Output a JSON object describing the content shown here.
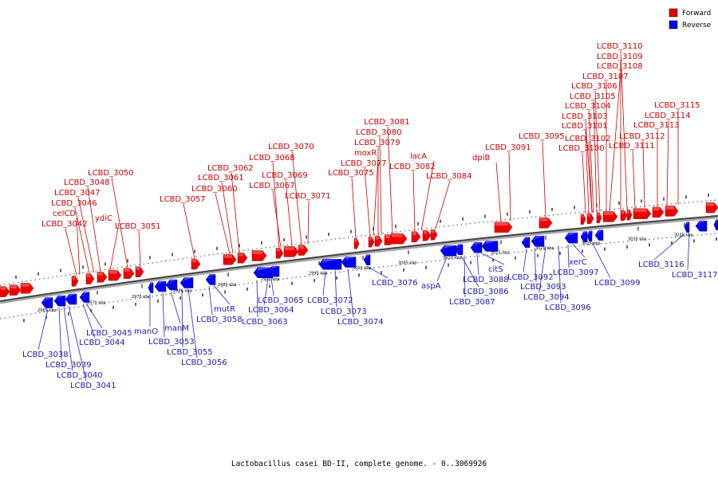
{
  "caption": "Lactobacillus casei BD-II, complete genome. - 0..3069926",
  "legend": [
    {
      "label": "Forward",
      "color": "#e00000"
    },
    {
      "label": "Reverse",
      "color": "#0000ee"
    }
  ],
  "tick_labels": [
    "2965 kbp",
    "2970 kbp",
    "2975 kbp",
    "2980 kbp",
    "2985 kbp",
    "2990 kbp",
    "2995 kbp",
    "3000 kbp",
    "3005 kbp",
    "3010 kbp",
    "3015 kbp",
    "3020 kbp",
    "3025 kbp",
    "3030 kbp",
    "3035 kbp"
  ],
  "forward_labels": [
    "LCBD_3042",
    "celCD",
    "LCBD_3046",
    "LCBD_3047",
    "LCBD_3048",
    "ydiC",
    "LCBD_3050",
    "LCBD_3051",
    "LCBD_3057",
    "LCBD_3060",
    "LCBD_3061",
    "LCBD_3062",
    "LCBD_3067",
    "LCBD_3068",
    "LCBD_3069",
    "LCBD_3070",
    "LCBD_3071",
    "LCBD_3075",
    "LCBD_3077",
    "moxR",
    "LCBD_3079",
    "LCBD_3080",
    "LCBD_3081",
    "LCBD_3082",
    "lacA",
    "LCBD_3084",
    "dpiB",
    "LCBD_3091",
    "LCBD_3095",
    "LCBD_3100",
    "LCBD_3101",
    "LCBD_3102",
    "LCBD_3103",
    "LCBD_3104",
    "LCBD_3105",
    "LCBD_3106",
    "LCBD_3107",
    "LCBD_3108",
    "LCBD_3109",
    "LCBD_3110",
    "LCBD_3111",
    "LCBD_3112",
    "LCBD_3113",
    "LCBD_3114",
    "LCBD_3115"
  ],
  "reverse_labels": [
    "LCBD_3038",
    "LCBD_3039",
    "LCBD_3040",
    "LCBD_3041",
    "LCBD_3044",
    "LCBD_3045",
    "manO",
    "LCBD_3053",
    "manM",
    "LCBD_3055",
    "LCBD_3056",
    "mutR",
    "LCBD_3058",
    "LCBD_3063",
    "LCBD_3064",
    "LCBD_3065",
    "LCBD_3072",
    "LCBD_3073",
    "LCBD_3074",
    "LCBD_3076",
    "aspA",
    "LCBD_3086",
    "LCBD_3087",
    "LCBD_3088",
    "citS",
    "LCBD_3092",
    "LCBD_3093",
    "LCBD_3094",
    "LCBD_3096",
    "LCBD_3097",
    "xerC",
    "LCBD_3099",
    "LCBD_3116",
    "LCBD_3117"
  ]
}
